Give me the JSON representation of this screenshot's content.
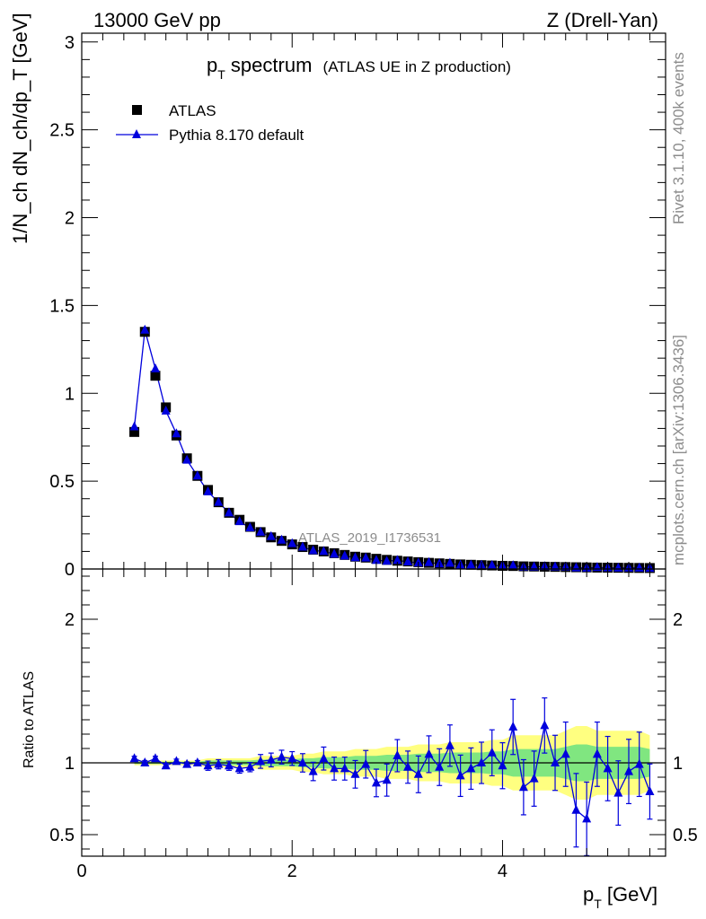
{
  "header": {
    "left": "13000 GeV pp",
    "right": "Z (Drell-Yan)"
  },
  "side": {
    "rivet": "Rivet 3.1.10,  400k events",
    "mcplots": "mcplots.cern.ch [arXiv:1306.3436]"
  },
  "chart_data": [
    {
      "type": "scatter",
      "title_main": "p",
      "title_sub": "T",
      "title_main2": " spectrum",
      "title_extra": "(ATLAS UE in Z production)",
      "watermark": "ATLAS_2019_I1736531",
      "ylabel": "1/N_ch dN_ch/dp_T [GeV]",
      "xlim": [
        0,
        5.55
      ],
      "ylim": [
        0,
        3.05
      ],
      "yticks": [
        "0",
        "0.5",
        "1",
        "1.5",
        "2",
        "2.5",
        "3"
      ],
      "legend": [
        {
          "name": "ATLAS",
          "marker": "square",
          "color": "#000000"
        },
        {
          "name": "Pythia 8.170 default",
          "marker": "triangle",
          "color": "#0000dd"
        }
      ],
      "x": [
        0.5,
        0.6,
        0.7,
        0.8,
        0.9,
        1.0,
        1.1,
        1.2,
        1.3,
        1.4,
        1.5,
        1.6,
        1.7,
        1.8,
        1.9,
        2.0,
        2.1,
        2.2,
        2.3,
        2.4,
        2.5,
        2.6,
        2.7,
        2.8,
        2.9,
        3.0,
        3.1,
        3.2,
        3.3,
        3.4,
        3.5,
        3.6,
        3.7,
        3.8,
        3.9,
        4.0,
        4.1,
        4.2,
        4.3,
        4.4,
        4.5,
        4.6,
        4.7,
        4.8,
        4.9,
        5.0,
        5.1,
        5.2,
        5.3,
        5.4
      ],
      "series": [
        {
          "name": "ATLAS",
          "values": [
            0.78,
            1.35,
            1.1,
            0.92,
            0.76,
            0.63,
            0.53,
            0.45,
            0.38,
            0.32,
            0.28,
            0.24,
            0.21,
            0.18,
            0.16,
            0.14,
            0.125,
            0.11,
            0.1,
            0.09,
            0.08,
            0.07,
            0.065,
            0.058,
            0.052,
            0.047,
            0.043,
            0.039,
            0.035,
            0.032,
            0.029,
            0.026,
            0.024,
            0.022,
            0.02,
            0.018,
            0.017,
            0.015,
            0.014,
            0.013,
            0.012,
            0.011,
            0.01,
            0.009,
            0.008,
            0.0075,
            0.007,
            0.0065,
            0.006,
            0.0055
          ]
        },
        {
          "name": "Pythia 8.170 default",
          "values": [
            0.81,
            1.36,
            1.14,
            0.9,
            0.77,
            0.62,
            0.53,
            0.44,
            0.38,
            0.32,
            0.27,
            0.235,
            0.21,
            0.185,
            0.165,
            0.145,
            0.125,
            0.105,
            0.1,
            0.085,
            0.075,
            0.065,
            0.063,
            0.05,
            0.045,
            0.049,
            0.041,
            0.035,
            0.037,
            0.03,
            0.033,
            0.023,
            0.023,
            0.022,
            0.021,
            0.018,
            0.02,
            0.012,
            0.012,
            0.015,
            0.012,
            0.012,
            0.007,
            0.0055,
            0.0087,
            0.0071,
            0.0055,
            0.006,
            0.006,
            0.0044
          ]
        }
      ]
    },
    {
      "type": "line",
      "ylabel": "Ratio to ATLAS",
      "xlabel_main": "p",
      "xlabel_sub": "T",
      "xlabel_unit": " [GeV]",
      "xlim": [
        0,
        5.55
      ],
      "ylim": [
        0.35,
        2.35
      ],
      "yticks_left": [
        "0.5",
        "1",
        "2"
      ],
      "yticks_right": [
        "0.5",
        "1",
        "2"
      ],
      "xticks": [
        "0",
        "2",
        "4"
      ],
      "x": [
        0.5,
        0.6,
        0.7,
        0.8,
        0.9,
        1.0,
        1.1,
        1.2,
        1.3,
        1.4,
        1.5,
        1.6,
        1.7,
        1.8,
        1.9,
        2.0,
        2.1,
        2.2,
        2.3,
        2.4,
        2.5,
        2.6,
        2.7,
        2.8,
        2.9,
        3.0,
        3.1,
        3.2,
        3.3,
        3.4,
        3.5,
        3.6,
        3.7,
        3.8,
        3.9,
        4.0,
        4.1,
        4.2,
        4.3,
        4.4,
        4.5,
        4.6,
        4.7,
        4.8,
        4.9,
        5.0,
        5.1,
        5.2,
        5.3,
        5.4
      ],
      "series": [
        {
          "name": "Pythia 8.170 default / ATLAS",
          "values": [
            1.03,
            1.0,
            1.03,
            0.98,
            1.01,
            0.99,
            1.0,
            0.98,
            0.99,
            0.98,
            0.96,
            0.97,
            1.01,
            1.02,
            1.04,
            1.03,
            1.0,
            0.94,
            1.03,
            0.96,
            0.96,
            0.92,
            0.99,
            0.86,
            0.88,
            1.05,
            0.97,
            0.92,
            1.06,
            0.97,
            1.12,
            0.91,
            0.96,
            1.0,
            1.07,
            0.98,
            1.25,
            0.83,
            0.89,
            1.26,
            1.0,
            1.06,
            0.67,
            0.61,
            1.06,
            0.96,
            0.79,
            0.94,
            0.99,
            0.8
          ]
        },
        {
          "name": "ratio uncertainty",
          "values": [
            0.01,
            0.01,
            0.01,
            0.01,
            0.01,
            0.01,
            0.01,
            0.02,
            0.02,
            0.02,
            0.02,
            0.02,
            0.03,
            0.03,
            0.03,
            0.03,
            0.04,
            0.04,
            0.05,
            0.05,
            0.05,
            0.06,
            0.06,
            0.06,
            0.07,
            0.07,
            0.07,
            0.08,
            0.08,
            0.08,
            0.09,
            0.09,
            0.09,
            0.09,
            0.1,
            0.1,
            0.12,
            0.12,
            0.12,
            0.12,
            0.12,
            0.14,
            0.16,
            0.16,
            0.14,
            0.14,
            0.14,
            0.14,
            0.14,
            0.12
          ]
        }
      ]
    }
  ]
}
